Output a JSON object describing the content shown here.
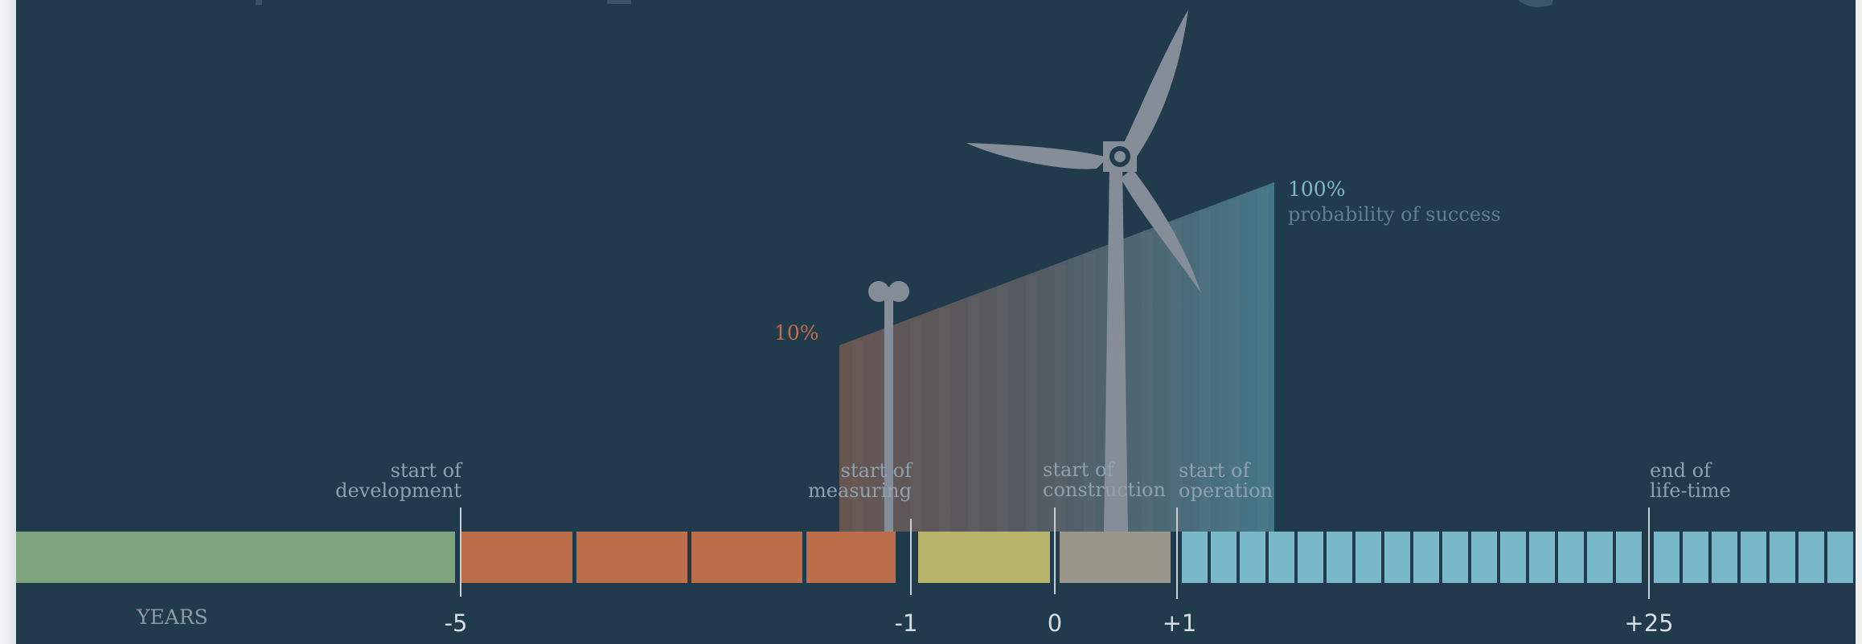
{
  "colors": {
    "background": "#213b4c",
    "development": "#7da47c",
    "development_years": "#bd6f4c",
    "measuring_year": "#b7b36b",
    "construction_year": "#9a968a",
    "operation_years": "#78b8c9",
    "turbine": "#858d98",
    "label_text": "#8fa1ad",
    "tick_text": "#d7dde2",
    "low_pct": "#c26e4d",
    "high_pct": "#7fb9c8"
  },
  "milestones": [
    {
      "id": "development",
      "line1": "start of",
      "line2": "development"
    },
    {
      "id": "measuring",
      "line1": "start of",
      "line2": "measuring"
    },
    {
      "id": "construction",
      "line1": "start of",
      "line2": "construction"
    },
    {
      "id": "operation",
      "line1": "start of",
      "line2": "operation"
    },
    {
      "id": "lifetime",
      "line1": "end of",
      "line2": "life-time"
    }
  ],
  "axis": {
    "label": "YEARS",
    "ticks": [
      "-5",
      "-1",
      "0",
      "+1",
      "+25"
    ]
  },
  "probability": {
    "low_value": "10%",
    "high_value": "100%",
    "high_caption": "probability of success"
  },
  "icons": {
    "anemometer": "anemometer-icon",
    "turbine": "wind-turbine-icon"
  }
}
